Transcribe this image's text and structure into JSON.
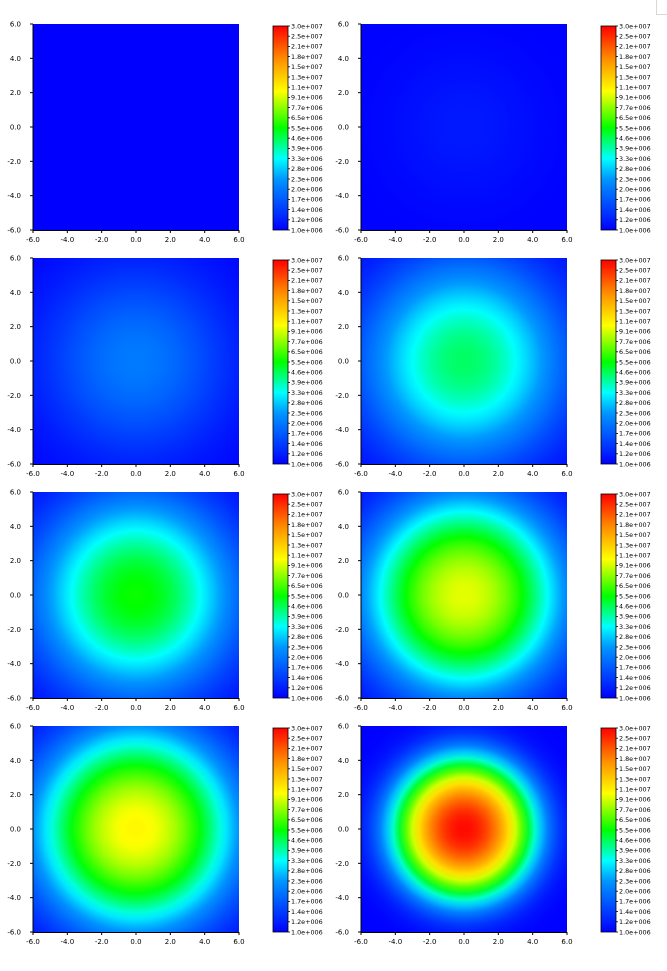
{
  "chart_data": [
    {
      "type": "heatmap",
      "peak": 1000000.0,
      "sigma": 3.0,
      "x_ticks": [
        "-6.0",
        "-4.0",
        "-2.0",
        "0.0",
        "2.0",
        "4.0",
        "6.0"
      ],
      "y_ticks": [
        "6.0",
        "4.0",
        "2.0",
        "0.0",
        "-2.0",
        "-4.0",
        "-6.0"
      ],
      "xlim": [
        -6,
        6
      ],
      "ylim": [
        -6,
        6
      ],
      "colorbar": {
        "min": 1000000.0,
        "max": 30000000.0,
        "labels": [
          "3.0e+007",
          "2.5e+007",
          "2.1e+007",
          "1.8e+007",
          "1.5e+007",
          "1.3e+007",
          "1.1e+007",
          "9.1e+006",
          "7.7e+006",
          "6.5e+006",
          "5.5e+006",
          "4.6e+006",
          "3.9e+006",
          "3.3e+006",
          "2.8e+006",
          "2.3e+006",
          "2.0e+006",
          "1.7e+006",
          "1.4e+006",
          "1.2e+006",
          "1.0e+006"
        ]
      }
    },
    {
      "type": "heatmap",
      "peak": 1150000.0,
      "sigma": 3.0,
      "x_ticks": [
        "-6.0",
        "-4.0",
        "-2.0",
        "0.0",
        "2.0",
        "4.0",
        "6.0"
      ],
      "y_ticks": [
        "6.0",
        "4.0",
        "2.0",
        "0.0",
        "-2.0",
        "-4.0",
        "-6.0"
      ],
      "xlim": [
        -6,
        6
      ],
      "ylim": [
        -6,
        6
      ],
      "colorbar": {
        "min": 1000000.0,
        "max": 30000000.0,
        "labels": [
          "3.0e+007",
          "2.5e+007",
          "2.1e+007",
          "1.8e+007",
          "1.5e+007",
          "1.3e+007",
          "1.1e+007",
          "9.1e+006",
          "7.7e+006",
          "6.5e+006",
          "5.5e+006",
          "4.6e+006",
          "3.9e+006",
          "3.3e+006",
          "2.8e+006",
          "2.3e+006",
          "2.0e+006",
          "1.7e+006",
          "1.4e+006",
          "1.2e+006",
          "1.0e+006"
        ]
      }
    },
    {
      "type": "heatmap",
      "peak": 2000000.0,
      "sigma": 3.4,
      "x_ticks": [
        "-6.0",
        "-4.0",
        "-2.0",
        "0.0",
        "2.0",
        "4.0",
        "6.0"
      ],
      "y_ticks": [
        "6.0",
        "4.0",
        "2.0",
        "0.0",
        "-2.0",
        "-4.0",
        "-6.0"
      ],
      "xlim": [
        -6,
        6
      ],
      "ylim": [
        -6,
        6
      ],
      "colorbar": {
        "min": 1000000.0,
        "max": 30000000.0,
        "labels": [
          "3.0e+007",
          "2.5e+007",
          "2.1e+007",
          "1.8e+007",
          "1.5e+007",
          "1.3e+007",
          "1.1e+007",
          "9.1e+006",
          "7.7e+006",
          "6.5e+006",
          "5.5e+006",
          "4.6e+006",
          "3.9e+006",
          "3.3e+006",
          "2.8e+006",
          "2.3e+006",
          "2.0e+006",
          "1.7e+006",
          "1.4e+006",
          "1.2e+006",
          "1.0e+006"
        ]
      }
    },
    {
      "type": "heatmap",
      "peak": 4500000.0,
      "sigma": 3.3,
      "x_ticks": [
        "-6.0",
        "-4.0",
        "-2.0",
        "0.0",
        "2.0",
        "4.0",
        "6.0"
      ],
      "y_ticks": [
        "6.0",
        "4.0",
        "2.0",
        "0.0",
        "-2.0",
        "-4.0",
        "-6.0"
      ],
      "xlim": [
        -6,
        6
      ],
      "ylim": [
        -6,
        6
      ],
      "colorbar": {
        "min": 1000000.0,
        "max": 30000000.0,
        "labels": [
          "3.0e+007",
          "2.5e+007",
          "2.1e+007",
          "1.8e+007",
          "1.5e+007",
          "1.3e+007",
          "1.1e+007",
          "9.1e+006",
          "7.7e+006",
          "6.5e+006",
          "5.5e+006",
          "4.6e+006",
          "3.9e+006",
          "3.3e+006",
          "2.8e+006",
          "2.3e+006",
          "2.0e+006",
          "1.7e+006",
          "1.4e+006",
          "1.2e+006",
          "1.0e+006"
        ]
      }
    },
    {
      "type": "heatmap",
      "peak": 5600000.0,
      "sigma": 3.2,
      "x_ticks": [
        "-6.0",
        "-4.0",
        "-2.0",
        "0.0",
        "2.0",
        "4.0",
        "6.0"
      ],
      "y_ticks": [
        "6.0",
        "4.0",
        "2.0",
        "0.0",
        "-2.0",
        "-4.0",
        "-6.0"
      ],
      "xlim": [
        -6,
        6
      ],
      "ylim": [
        -6,
        6
      ],
      "colorbar": {
        "min": 1000000.0,
        "max": 30000000.0,
        "labels": [
          "3.0e+007",
          "2.5e+007",
          "2.1e+007",
          "1.8e+007",
          "1.5e+007",
          "1.3e+007",
          "1.1e+007",
          "9.1e+006",
          "7.7e+006",
          "6.5e+006",
          "5.5e+006",
          "4.6e+006",
          "3.9e+006",
          "3.3e+006",
          "2.8e+006",
          "2.3e+006",
          "2.0e+006",
          "1.7e+006",
          "1.4e+006",
          "1.2e+006",
          "1.0e+006"
        ]
      }
    },
    {
      "type": "heatmap",
      "peak": 9500000.0,
      "sigma": 3.0,
      "x_ticks": [
        "-6.0",
        "-4.0",
        "-2.0",
        "0.0",
        "2.0",
        "4.0",
        "6.0"
      ],
      "y_ticks": [
        "6.0",
        "4.0",
        "2.0",
        "0.0",
        "-2.0",
        "-4.0",
        "-6.0"
      ],
      "xlim": [
        -6,
        6
      ],
      "ylim": [
        -6,
        6
      ],
      "colorbar": {
        "min": 1000000.0,
        "max": 30000000.0,
        "labels": [
          "3.0e+007",
          "2.5e+007",
          "2.1e+007",
          "1.8e+007",
          "1.5e+007",
          "1.3e+007",
          "1.1e+007",
          "9.1e+006",
          "7.7e+006",
          "6.5e+006",
          "5.5e+006",
          "4.6e+006",
          "3.9e+006",
          "3.3e+006",
          "2.8e+006",
          "2.3e+006",
          "2.0e+006",
          "1.7e+006",
          "1.4e+006",
          "1.2e+006",
          "1.0e+006"
        ]
      }
    },
    {
      "type": "heatmap",
      "peak": 10500000.0,
      "sigma": 3.0,
      "x_ticks": [
        "-6.0",
        "-4.0",
        "-2.0",
        "0.0",
        "2.0",
        "4.0",
        "6.0"
      ],
      "y_ticks": [
        "6.0",
        "4.0",
        "2.0",
        "0.0",
        "-2.0",
        "-4.0",
        "-6.0"
      ],
      "xlim": [
        -6,
        6
      ],
      "ylim": [
        -6,
        6
      ],
      "colorbar": {
        "min": 1000000.0,
        "max": 30000000.0,
        "labels": [
          "3.0e+007",
          "2.5e+007",
          "2.1e+007",
          "1.8e+007",
          "1.5e+007",
          "1.3e+007",
          "1.1e+007",
          "9.1e+006",
          "7.7e+006",
          "6.5e+006",
          "5.5e+006",
          "4.6e+006",
          "3.9e+006",
          "3.3e+006",
          "2.8e+006",
          "2.3e+006",
          "2.0e+006",
          "1.7e+006",
          "1.4e+006",
          "1.2e+006",
          "1.0e+006"
        ]
      }
    },
    {
      "type": "heatmap",
      "peak": 29000000.0,
      "sigma": 1.9,
      "x_ticks": [
        "-6.0",
        "-4.0",
        "-2.0",
        "0.0",
        "2.0",
        "4.0",
        "6.0"
      ],
      "y_ticks": [
        "6.0",
        "4.0",
        "2.0",
        "0.0",
        "-2.0",
        "-4.0",
        "-6.0"
      ],
      "xlim": [
        -6,
        6
      ],
      "ylim": [
        -6,
        6
      ],
      "colorbar": {
        "min": 1000000.0,
        "max": 30000000.0,
        "labels": [
          "3.0e+007",
          "2.5e+007",
          "2.1e+007",
          "1.8e+007",
          "1.5e+007",
          "1.3e+007",
          "1.1e+007",
          "9.1e+006",
          "7.7e+006",
          "6.5e+006",
          "5.5e+006",
          "4.6e+006",
          "3.9e+006",
          "3.3e+006",
          "2.8e+006",
          "2.3e+006",
          "2.0e+006",
          "1.7e+006",
          "1.4e+006",
          "1.2e+006",
          "1.0e+006"
        ]
      }
    }
  ]
}
